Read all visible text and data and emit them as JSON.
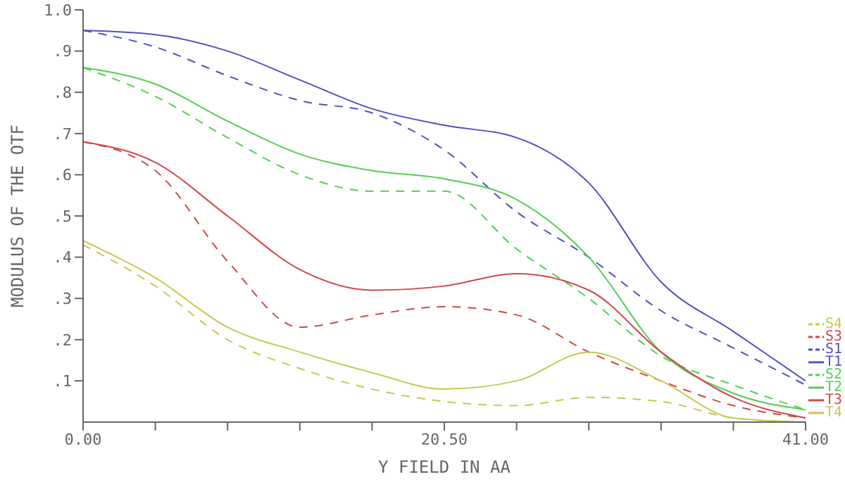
{
  "chart_data": {
    "type": "line",
    "xlabel": "Y FIELD IN  AA",
    "ylabel": "MODULUS OF THE OTF",
    "x": [
      0,
      4.1,
      8.2,
      12.3,
      16.4,
      20.5,
      24.6,
      28.7,
      32.8,
      36.9,
      41
    ],
    "xlim": [
      0,
      41
    ],
    "xticks": [
      {
        "value": 0,
        "label": "0.00"
      },
      {
        "value": 4.1,
        "label": null
      },
      {
        "value": 8.2,
        "label": null
      },
      {
        "value": 12.3,
        "label": null
      },
      {
        "value": 16.4,
        "label": null
      },
      {
        "value": 20.5,
        "label": "20.50"
      },
      {
        "value": 24.6,
        "label": null
      },
      {
        "value": 28.7,
        "label": null
      },
      {
        "value": 32.8,
        "label": null
      },
      {
        "value": 36.9,
        "label": null
      },
      {
        "value": 41,
        "label": "41.00"
      }
    ],
    "ylim": [
      0,
      1
    ],
    "yticks": [
      {
        "value": 0.1,
        "label": ".1"
      },
      {
        "value": 0.2,
        "label": ".2"
      },
      {
        "value": 0.3,
        "label": ".3"
      },
      {
        "value": 0.4,
        "label": ".4"
      },
      {
        "value": 0.5,
        "label": ".5"
      },
      {
        "value": 0.6,
        "label": ".6"
      },
      {
        "value": 0.7,
        "label": ".7"
      },
      {
        "value": 0.8,
        "label": ".8"
      },
      {
        "value": 0.9,
        "label": ".9"
      },
      {
        "value": 1,
        "label": "1.0"
      }
    ],
    "legend": "right",
    "series": [
      {
        "name": "S4",
        "color": "#c8c850",
        "line_style": "dashed",
        "values": [
          0.43,
          0.33,
          0.2,
          0.13,
          0.08,
          0.05,
          0.04,
          0.06,
          0.05,
          0.01,
          0
        ]
      },
      {
        "name": "S3",
        "color": "#d04848",
        "line_style": "dashed",
        "values": [
          0.68,
          0.61,
          0.39,
          0.23,
          0.26,
          0.28,
          0.26,
          0.17,
          0.1,
          0.04,
          0.01
        ]
      },
      {
        "name": "S1",
        "color": "#5050c0",
        "line_style": "dashed",
        "values": [
          0.95,
          0.91,
          0.84,
          0.78,
          0.75,
          0.66,
          0.51,
          0.4,
          0.27,
          0.18,
          0.09
        ]
      },
      {
        "name": "T1",
        "color": "#5050c0",
        "line_style": "solid",
        "values": [
          0.95,
          0.94,
          0.9,
          0.83,
          0.76,
          0.72,
          0.69,
          0.58,
          0.34,
          0.22,
          0.1
        ]
      },
      {
        "name": "S2",
        "color": "#50d050",
        "line_style": "dashed",
        "values": [
          0.86,
          0.79,
          0.69,
          0.6,
          0.56,
          0.56,
          0.42,
          0.3,
          0.16,
          0.09,
          0.03
        ]
      },
      {
        "name": "T2",
        "color": "#50d050",
        "line_style": "solid",
        "values": [
          0.86,
          0.82,
          0.73,
          0.65,
          0.61,
          0.59,
          0.54,
          0.4,
          0.17,
          0.07,
          0.03
        ]
      },
      {
        "name": "T3",
        "color": "#d04848",
        "line_style": "solid",
        "values": [
          0.68,
          0.63,
          0.5,
          0.37,
          0.32,
          0.33,
          0.36,
          0.32,
          0.17,
          0.06,
          0.01
        ]
      },
      {
        "name": "T4",
        "color": "#c8c850",
        "line_style": "solid",
        "values": [
          0.44,
          0.35,
          0.23,
          0.17,
          0.12,
          0.08,
          0.1,
          0.17,
          0.1,
          0.01,
          0
        ]
      }
    ]
  }
}
